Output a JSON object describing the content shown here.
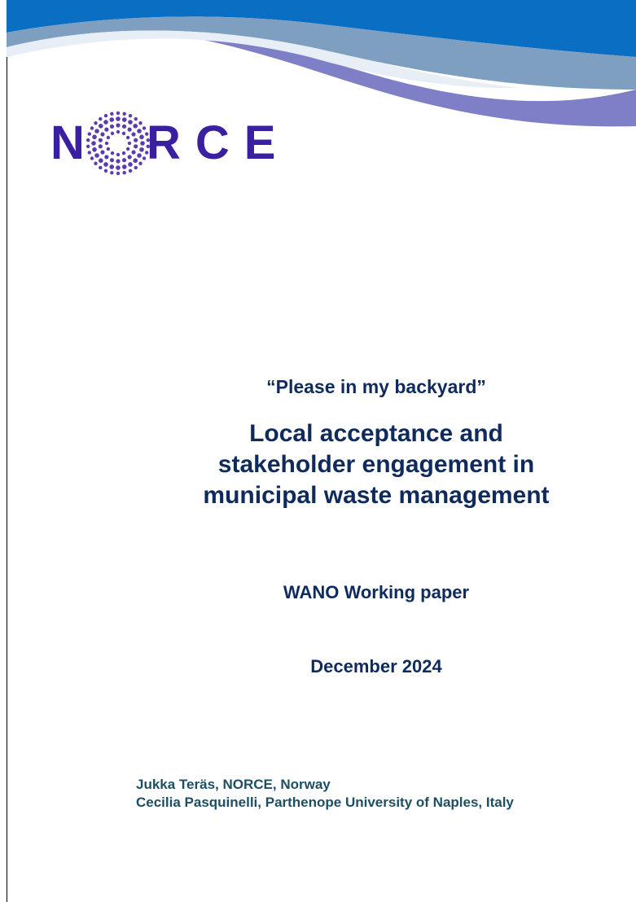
{
  "logo": {
    "before": "N",
    "after": "RCE"
  },
  "subtitle": "“Please in my backyard”",
  "title": [
    "Local acceptance and",
    "stakeholder engagement in",
    "municipal waste management"
  ],
  "series": "WANO Working paper",
  "date": "December 2024",
  "authors": [
    "Jukka Teräs, NORCE, Norway",
    "Cecilia Pasquinelli, Parthenope University of Naples, Italy"
  ]
}
